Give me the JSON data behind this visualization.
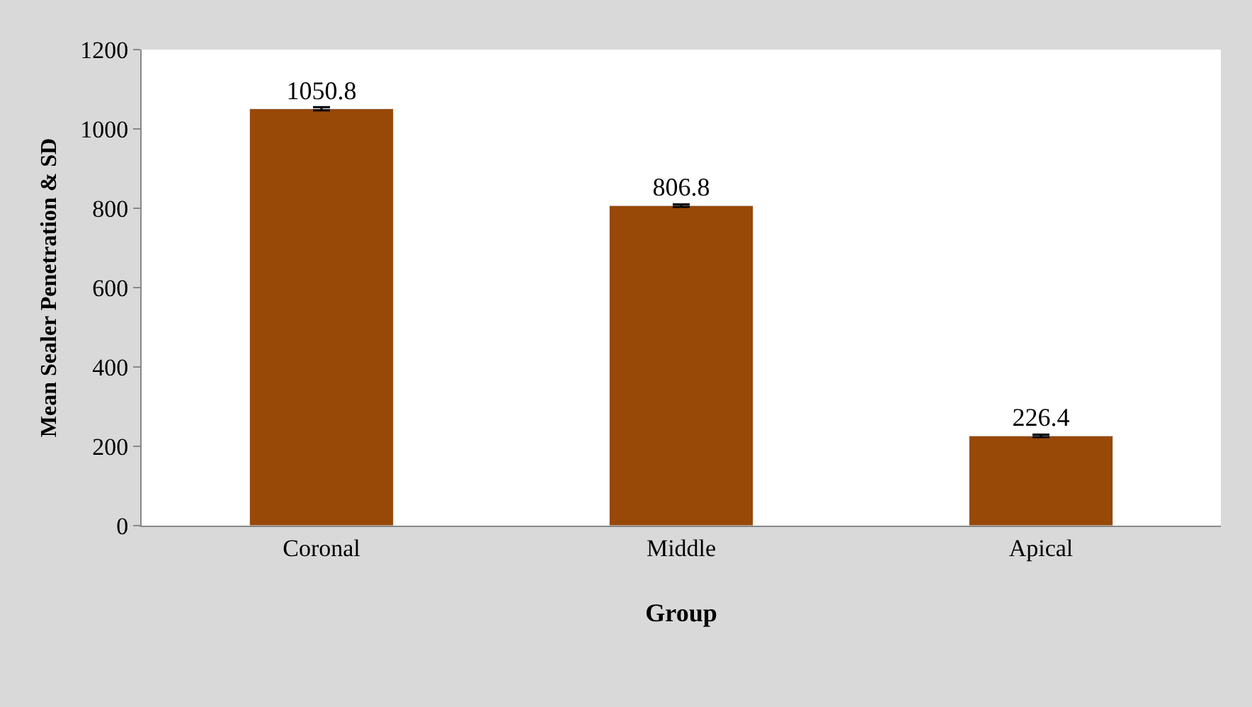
{
  "chart_data": {
    "type": "bar",
    "xlabel": "Group",
    "ylabel": "Mean Sealer Penetration & SD",
    "categories": [
      "Coronal",
      "Middle",
      "Apical"
    ],
    "values": [
      1050.8,
      806.8,
      226.4
    ],
    "errors": [
      4,
      3,
      3
    ],
    "color": "#984807",
    "ylim": [
      0,
      1200
    ],
    "yticks": [
      0,
      200,
      400,
      600,
      800,
      1000,
      1200
    ],
    "data_labels": true
  }
}
